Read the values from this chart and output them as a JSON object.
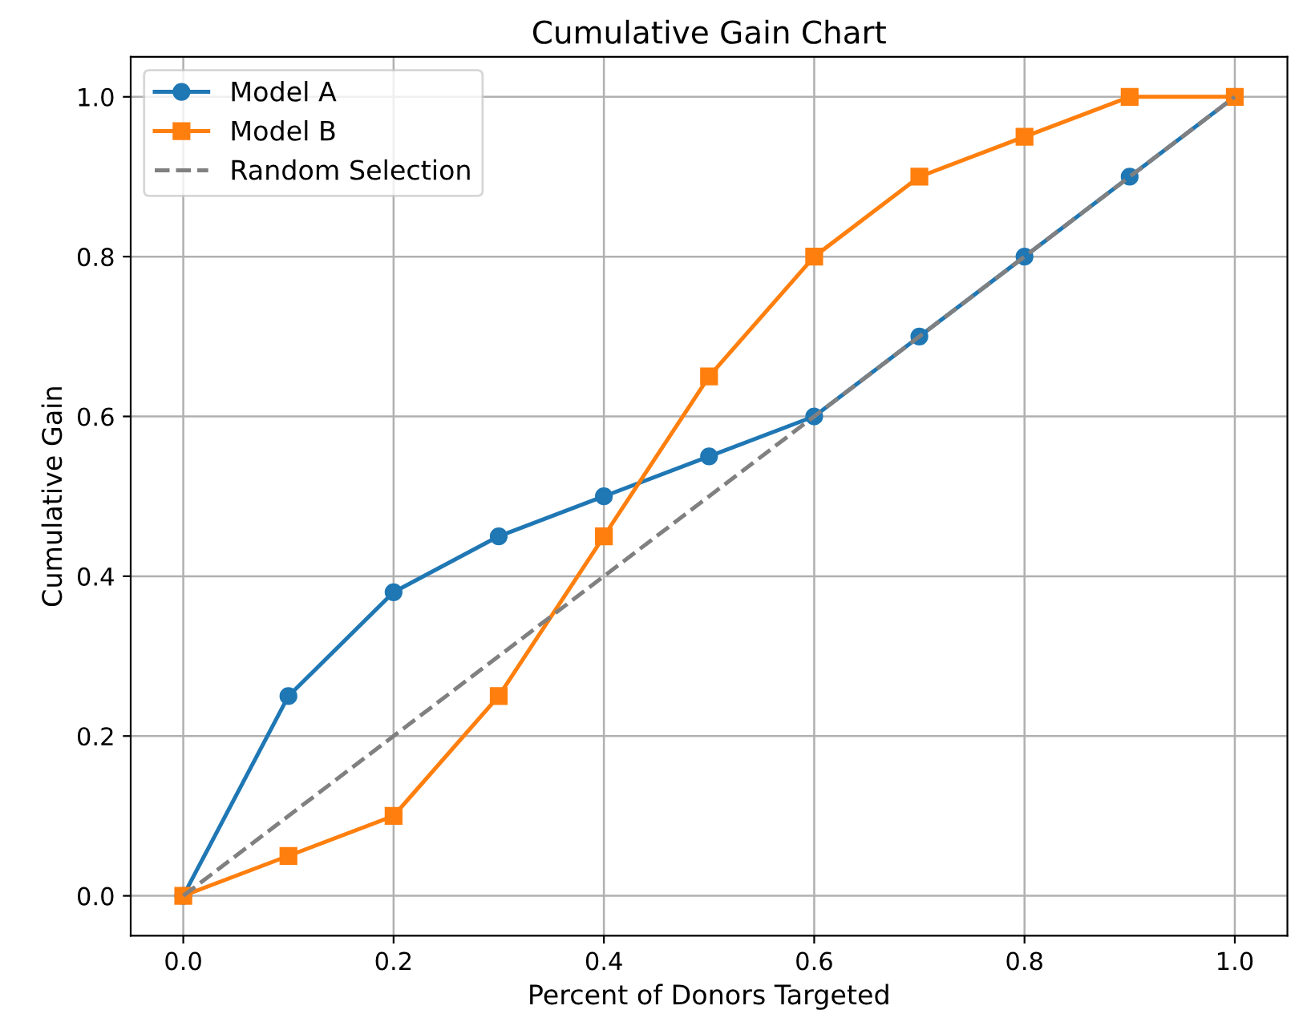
{
  "chart_data": {
    "type": "line",
    "title": "Cumulative Gain Chart",
    "xlabel": "Percent of Donors Targeted",
    "ylabel": "Cumulative Gain",
    "x": [
      0.0,
      0.1,
      0.2,
      0.3,
      0.4,
      0.5,
      0.6,
      0.7,
      0.8,
      0.9,
      1.0
    ],
    "series": [
      {
        "name": "Model A",
        "color": "#1f77b4",
        "marker": "circle",
        "line_style": "solid",
        "values": [
          0.0,
          0.25,
          0.38,
          0.45,
          0.5,
          0.55,
          0.6,
          0.7,
          0.8,
          0.9,
          1.0
        ]
      },
      {
        "name": "Model B",
        "color": "#ff7f0e",
        "marker": "square",
        "line_style": "solid",
        "values": [
          0.0,
          0.05,
          0.1,
          0.25,
          0.45,
          0.65,
          0.8,
          0.9,
          0.95,
          1.0,
          1.0
        ]
      },
      {
        "name": "Random Selection",
        "color": "#808080",
        "marker": "none",
        "line_style": "dashed",
        "x": [
          0.0,
          1.0
        ],
        "values": [
          0.0,
          1.0
        ]
      }
    ],
    "xlim": [
      -0.05,
      1.05
    ],
    "ylim": [
      -0.05,
      1.05
    ],
    "xticks": [
      {
        "value": 0,
        "label": "0.0"
      },
      0.2,
      0.4,
      0.6,
      0.8,
      {
        "value": 1,
        "label": "1.0"
      }
    ],
    "yticks": [
      {
        "value": 0,
        "label": "0.0"
      },
      0.2,
      0.4,
      0.6,
      0.8,
      {
        "value": 1,
        "label": "1.0"
      }
    ],
    "grid": true,
    "legend": "top left"
  }
}
